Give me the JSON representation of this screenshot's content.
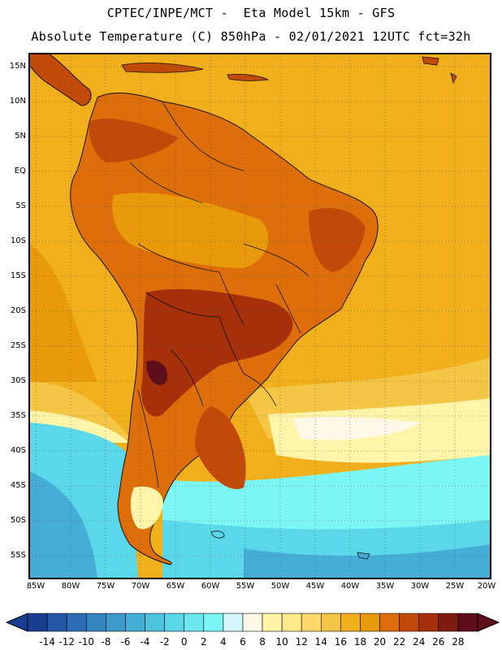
{
  "header": {
    "line1": "CPTEC/INPE/MCT -  Eta Model 15km - GFS",
    "line2": "Absolute Temperature (C) 850hPa - 02/01/2021 12UTC fct=32h"
  },
  "map_axes": {
    "lat_labels": [
      "15N",
      "10N",
      "5N",
      "EQ",
      "5S",
      "10S",
      "15S",
      "20S",
      "25S",
      "30S",
      "35S",
      "40S",
      "45S",
      "50S",
      "55S"
    ],
    "lon_labels": [
      "85W",
      "80W",
      "75W",
      "70W",
      "65W",
      "60W",
      "55W",
      "50W",
      "45W",
      "40W",
      "35W",
      "30W",
      "25W",
      "20W"
    ]
  },
  "colorbar": {
    "labels": [
      "-14",
      "-12",
      "-10",
      "-8",
      "-6",
      "-4",
      "-2",
      "0",
      "2",
      "4",
      "6",
      "8",
      "10",
      "12",
      "14",
      "16",
      "18",
      "20",
      "22",
      "24",
      "26",
      "28"
    ],
    "colors": [
      "#1a3d8f",
      "#2456a6",
      "#2c6db5",
      "#3584c2",
      "#3d98cc",
      "#45aed6",
      "#4cc4de",
      "#5ad7e8",
      "#6ae8ee",
      "#7cf5f5",
      "#d4f7fb",
      "#fff8e6",
      "#fff4a8",
      "#ffe98a",
      "#fbd86a",
      "#f5c546",
      "#f1af1c",
      "#e89a0a",
      "#dd6e0a",
      "#c24a08",
      "#a5300a",
      "#7e1c10",
      "#5e0d1a"
    ]
  },
  "field": {
    "ocean_base": "#f1af1c",
    "land_base": "#dd6e0a",
    "coast_color": "#111111"
  }
}
